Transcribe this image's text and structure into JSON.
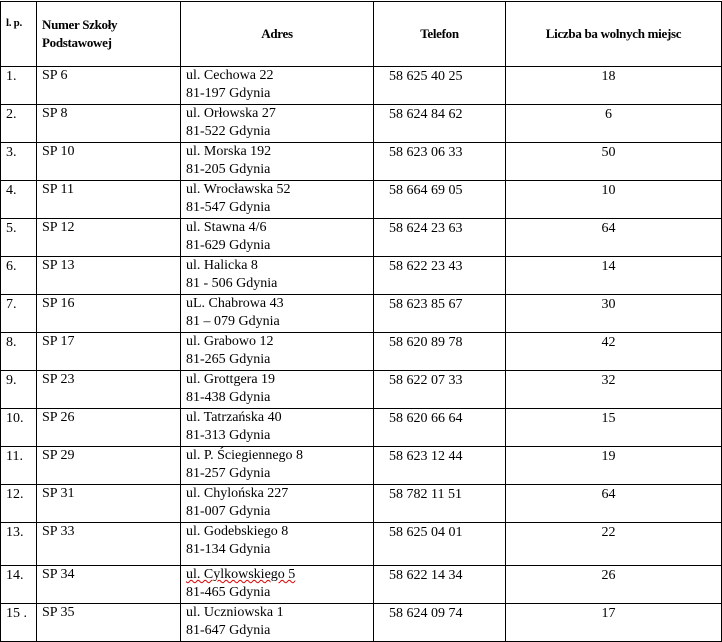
{
  "header": {
    "lp": "l. p.",
    "school": "Numer Szkoły Podstawowej",
    "address": "Adres",
    "phone": "Telefon",
    "count": "Liczba ba wolnych  miejsc"
  },
  "rows": [
    {
      "lp": "1.",
      "school": "SP 6",
      "street": "ul. Cechowa 22",
      "city": "81-197 Gdynia",
      "phone": "58 625 40 25",
      "count": "18"
    },
    {
      "lp": "2.",
      "school": "SP 8",
      "street": "ul. Orłowska 27",
      "city": "81-522 Gdynia",
      "phone": "58 624 84 62",
      "count": "6"
    },
    {
      "lp": "3.",
      "school": "SP 10",
      "street": "ul. Morska 192",
      "city": "81-205 Gdynia",
      "phone": "58 623 06 33",
      "count": "50"
    },
    {
      "lp": "4.",
      "school": "SP 11",
      "street": "ul. Wrocławska 52",
      "city": "81-547 Gdynia",
      "phone": "58 664 69 05",
      "count": "10"
    },
    {
      "lp": "5.",
      "school": "SP 12",
      "street": "ul. Stawna 4/6",
      "city": "81-629 Gdynia",
      "phone": "58 624 23 63",
      "count": "64"
    },
    {
      "lp": "6.",
      "school": "SP 13",
      "street": "ul. Halicka 8",
      "city": "81 - 506 Gdynia",
      "phone": "58 622 23 43",
      "count": "14"
    },
    {
      "lp": "7.",
      "school": "SP 16",
      "street": "uL. Chabrowa 43",
      "city": "81 – 079 Gdynia",
      "phone": "58 623 85 67",
      "count": "30"
    },
    {
      "lp": "8.",
      "school": "SP 17",
      "street": "ul. Grabowo 12",
      "city": "81-265 Gdynia",
      "phone": "58 620 89 78",
      "count": "42"
    },
    {
      "lp": "9.",
      "school": "SP 23",
      "street": "ul. Grottgera 19",
      "city": "81-438 Gdynia",
      "phone": "58 622 07 33",
      "count": "32"
    },
    {
      "lp": "10.",
      "school": "SP 26",
      "street": "ul. Tatrzańska 40",
      "city": "81-313 Gdynia",
      "phone": "58 620 66 64",
      "count": "15"
    },
    {
      "lp": "11.",
      "school": "SP 29",
      "street": "ul. P. Ściegiennego 8",
      "city": "81-257 Gdynia",
      "phone": "58 623 12 44",
      "count": "19"
    },
    {
      "lp": "12.",
      "school": "SP 31",
      "street": "ul. Chylońska 227",
      "city": "81-007 Gdynia",
      "phone": "58 782 11 51",
      "count": "64"
    },
    {
      "lp": "13.",
      "school": "SP 33",
      "street": "ul. Godebskiego 8",
      "city": "81-134 Gdynia",
      "phone": "58 625 04 01",
      "count": "22"
    },
    {
      "lp": "14.",
      "school": "SP 34",
      "street": "ul. Cylkowskiego 5",
      "city": "81-465 Gdynia",
      "phone": "58 622 14 34",
      "count": "26"
    },
    {
      "lp": "15 .",
      "school": "SP 35",
      "street": "ul. Uczniowska 1",
      "city": "81-647 Gdynia",
      "phone": "58 624 09 74",
      "count": "17"
    }
  ]
}
